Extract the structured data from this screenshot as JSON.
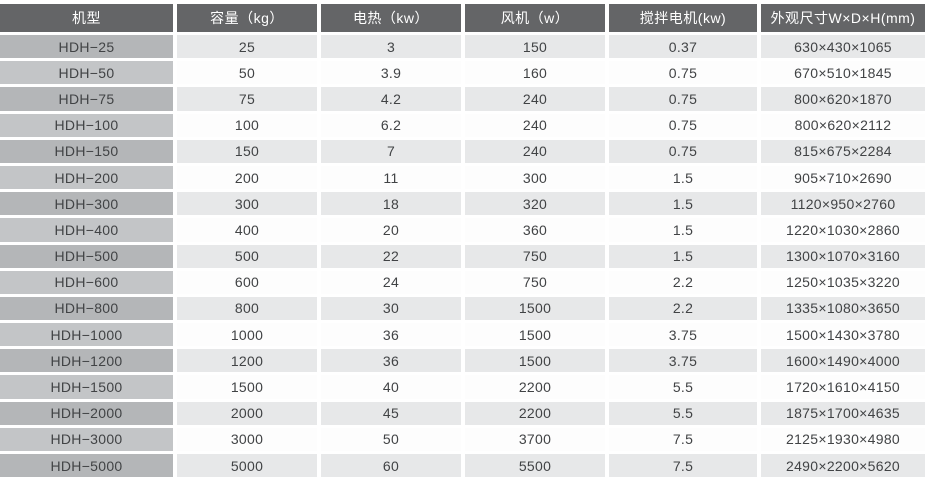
{
  "table": {
    "columns": [
      {
        "key": "model",
        "label": "机型"
      },
      {
        "key": "capacity",
        "label": "容量（kg）"
      },
      {
        "key": "heating",
        "label": "电热（kw）"
      },
      {
        "key": "fan",
        "label": "风机（w）"
      },
      {
        "key": "motor",
        "label": "搅拌电机(kw)"
      },
      {
        "key": "dimensions",
        "label": "外观尺寸W×D×H(mm)"
      }
    ],
    "rows": [
      [
        "HDH−25",
        "25",
        "3",
        "150",
        "0.37",
        "630×430×1065"
      ],
      [
        "HDH−50",
        "50",
        "3.9",
        "160",
        "0.75",
        "670×510×1845"
      ],
      [
        "HDH−75",
        "75",
        "4.2",
        "240",
        "0.75",
        "800×620×1870"
      ],
      [
        "HDH−100",
        "100",
        "6.2",
        "240",
        "0.75",
        "800×620×2112"
      ],
      [
        "HDH−150",
        "150",
        "7",
        "240",
        "0.75",
        "815×675×2284"
      ],
      [
        "HDH−200",
        "200",
        "11",
        "300",
        "1.5",
        "905×710×2690"
      ],
      [
        "HDH−300",
        "300",
        "18",
        "320",
        "1.5",
        "1120×950×2760"
      ],
      [
        "HDH−400",
        "400",
        "20",
        "360",
        "1.5",
        "1220×1030×2860"
      ],
      [
        "HDH−500",
        "500",
        "22",
        "750",
        "1.5",
        "1300×1070×3160"
      ],
      [
        "HDH−600",
        "600",
        "24",
        "750",
        "2.2",
        "1250×1035×3220"
      ],
      [
        "HDH−800",
        "800",
        "30",
        "1500",
        "2.2",
        "1335×1080×3650"
      ],
      [
        "HDH−1000",
        "1000",
        "36",
        "1500",
        "3.75",
        "1500×1430×3780"
      ],
      [
        "HDH−1200",
        "1200",
        "36",
        "1500",
        "3.75",
        "1600×1490×4000"
      ],
      [
        "HDH−1500",
        "1500",
        "40",
        "2200",
        "5.5",
        "1720×1610×4150"
      ],
      [
        "HDH−2000",
        "2000",
        "45",
        "2200",
        "5.5",
        "1875×1700×4635"
      ],
      [
        "HDH−3000",
        "3000",
        "50",
        "3700",
        "7.5",
        "2125×1930×4980"
      ],
      [
        "HDH−5000",
        "5000",
        "60",
        "5500",
        "7.5",
        "2490×2200×5620"
      ]
    ]
  },
  "theme": {
    "page_bg": "#ffffff",
    "header_bg": "#646567",
    "header_text": "#ffffff",
    "model_col_bg_odd": "#b4b6b8",
    "model_col_bg_even": "#c3c5c7",
    "data_bg_odd": "#e7e8e9",
    "data_bg_even": "#fdfdfd",
    "data_text": "#414345"
  }
}
